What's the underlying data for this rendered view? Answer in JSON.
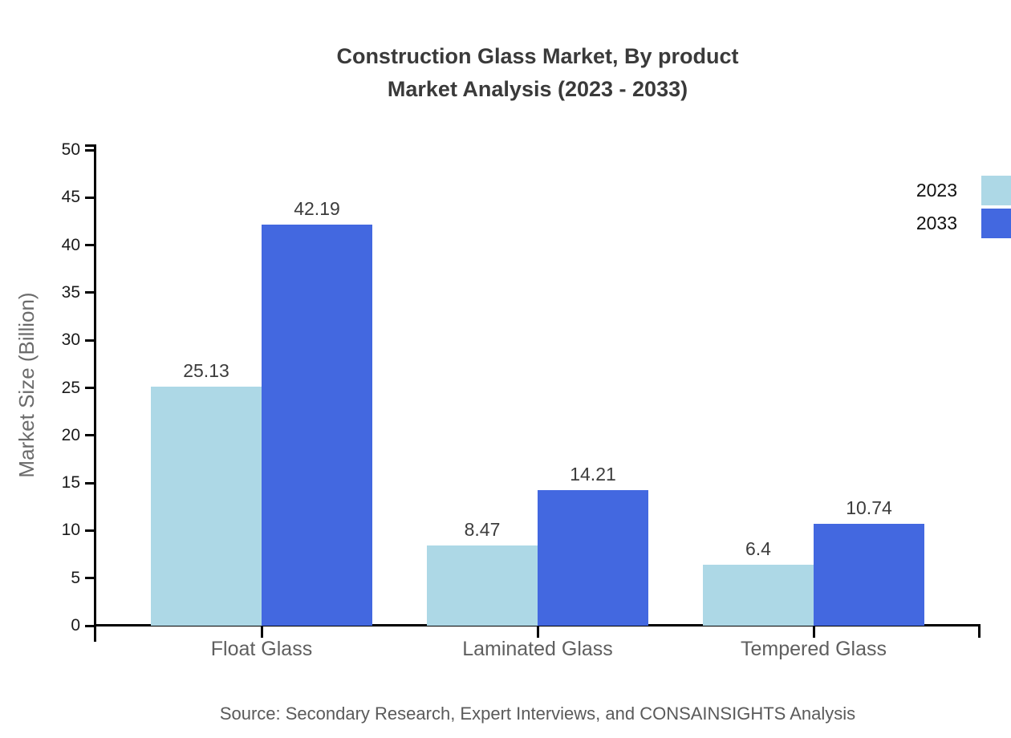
{
  "chart_data": {
    "type": "bar",
    "title": {
      "line1": "Construction Glass Market, By product",
      "line2": "Market Analysis (2023 - 2033)"
    },
    "categories": [
      "Float Glass",
      "Laminated Glass",
      "Tempered Glass"
    ],
    "series": [
      {
        "name": "2023",
        "color": "#ADD8E6",
        "values": [
          25.13,
          8.47,
          6.4
        ]
      },
      {
        "name": "2033",
        "color": "#4368E0",
        "values": [
          42.19,
          14.21,
          10.74
        ]
      }
    ],
    "ylabel": "Market Size (Billion)",
    "ylim": [
      0,
      50
    ],
    "yticks": [
      0,
      5,
      10,
      15,
      20,
      25,
      30,
      35,
      40,
      45,
      50
    ],
    "grid": false,
    "legend_position": "top-right",
    "axis_color": "#000000",
    "source": "Source: Secondary Research, Expert Interviews, and CONSAINSIGHTS Analysis"
  }
}
